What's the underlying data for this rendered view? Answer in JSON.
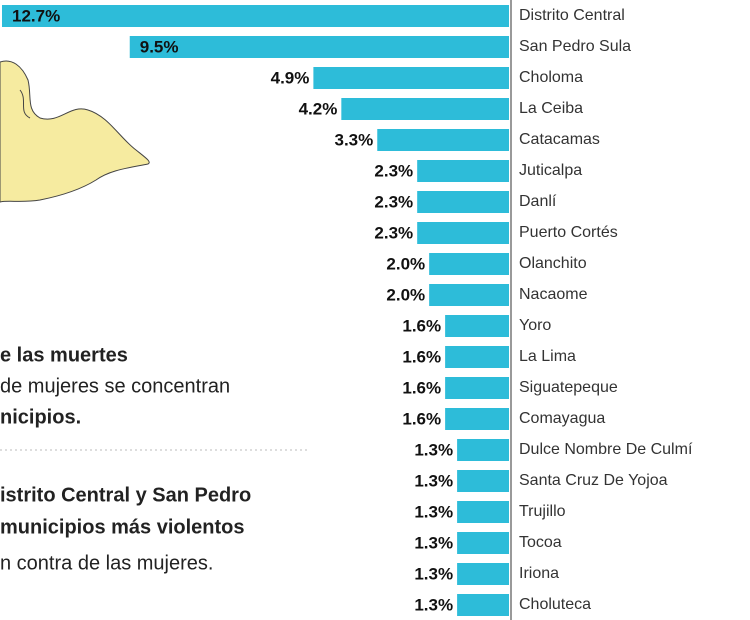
{
  "chart_data": {
    "type": "bar",
    "orientation": "horizontal",
    "categories": [
      "Distrito Central",
      "San Pedro Sula",
      "Choloma",
      "La Ceiba",
      "Catacamas",
      "Juticalpa",
      "Danlí",
      "Puerto Cortés",
      "Olanchito",
      "Nacaome",
      "Yoro",
      "La Lima",
      "Siguatepeque",
      "Comayagua",
      "Dulce Nombre De Culmí",
      "Santa Cruz De Yojoa",
      "Trujillo",
      "Tocoa",
      "Iriona",
      "Choluteca"
    ],
    "values": [
      12.7,
      9.5,
      4.9,
      4.2,
      3.3,
      2.3,
      2.3,
      2.3,
      2.0,
      2.0,
      1.6,
      1.6,
      1.6,
      1.6,
      1.3,
      1.3,
      1.3,
      1.3,
      1.3,
      1.3
    ],
    "value_labels": [
      "12.7%",
      "9.5%",
      "4.9%",
      "4.2%",
      "3.3%",
      "2.3%",
      "2.3%",
      "2.3%",
      "2.0%",
      "2.0%",
      "1.6%",
      "1.6%",
      "1.6%",
      "1.6%",
      "1.3%",
      "1.3%",
      "1.3%",
      "1.3%",
      "1.3%",
      "1.3%"
    ],
    "color": "#2dbcd9",
    "xlim": [
      0,
      12.75
    ],
    "annotations": [
      "e las muertes",
      "de mujeres se concentran",
      "nicipios.",
      "istrito Central y San Pedro",
      "municipios más violentos",
      "n contra de las mujeres."
    ]
  }
}
